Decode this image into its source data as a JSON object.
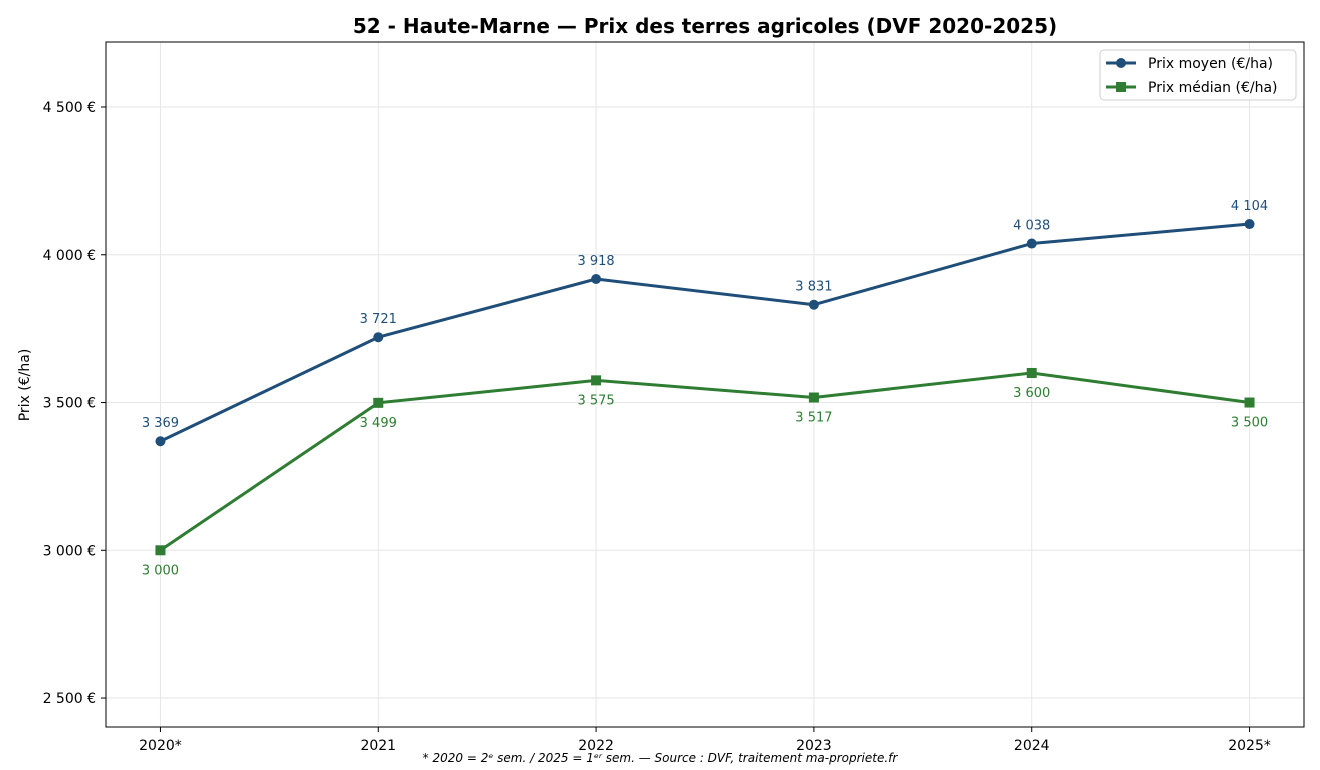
{
  "chart_data": {
    "type": "line",
    "title": "52 - Haute-Marne — Prix des terres agricoles (DVF 2020-2025)",
    "xlabel": "",
    "ylabel": "Prix (€/ha)",
    "categories": [
      "2020*",
      "2021",
      "2022",
      "2023",
      "2024",
      "2025*"
    ],
    "ylim": [
      2402,
      4720
    ],
    "yticks": [
      2500,
      3000,
      3500,
      4000,
      4500
    ],
    "ytick_labels": [
      "2 500 €",
      "3 000 €",
      "3 500 €",
      "4 000 €",
      "4 500 €"
    ],
    "grid": true,
    "legend_position": "top-right",
    "series": [
      {
        "name": "Prix moyen (€/ha)",
        "color": "#1f4e79",
        "marker": "circle",
        "values": [
          3369,
          3721,
          3918,
          3831,
          4038,
          4104
        ],
        "labels": [
          "3 369",
          "3 721",
          "3 918",
          "3 831",
          "4 038",
          "4 104"
        ],
        "label_position": "above"
      },
      {
        "name": "Prix médian (€/ha)",
        "color": "#2e7d32",
        "marker": "square",
        "values": [
          3000,
          3499,
          3575,
          3517,
          3600,
          3500
        ],
        "labels": [
          "3 000",
          "3 499",
          "3 575",
          "3 517",
          "3 600",
          "3 500"
        ],
        "label_position": "below"
      }
    ],
    "footnote": "* 2020 = 2ᵉ sem. / 2025 = 1ᵉʳ sem. — Source : DVF, traitement ma-propriete.fr"
  }
}
